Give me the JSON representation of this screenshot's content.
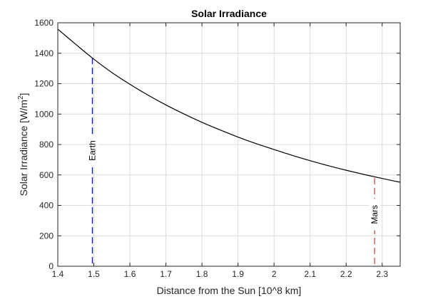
{
  "chart_data": {
    "type": "line",
    "title": "Solar Irradiance",
    "xlabel": "Distance from the Sun [10^8 km]",
    "ylabel_main": "Solar Irradiance [W/m",
    "ylabel_sup": "2",
    "ylabel_close": "]",
    "xlim": [
      1.4,
      2.35
    ],
    "ylim": [
      0,
      1600
    ],
    "xticks": [
      1.4,
      1.5,
      1.6,
      1.7,
      1.8,
      1.9,
      2.0,
      2.1,
      2.2,
      2.3
    ],
    "xtick_labels": [
      "1.4",
      "1.5",
      "1.6",
      "1.7",
      "1.8",
      "1.9",
      "2",
      "2.1",
      "2.2",
      "2.3"
    ],
    "yticks": [
      0,
      200,
      400,
      600,
      800,
      1000,
      1200,
      1400,
      1600
    ],
    "ytick_labels": [
      "0",
      "200",
      "400",
      "600",
      "800",
      "1000",
      "1200",
      "1400",
      "1600"
    ],
    "grid": true,
    "series": [
      {
        "color": "#000000",
        "x": [
          1.4,
          1.45,
          1.5,
          1.55,
          1.6,
          1.65,
          1.7,
          1.75,
          1.8,
          1.85,
          1.9,
          1.95,
          2.0,
          2.05,
          2.1,
          2.15,
          2.2,
          2.25,
          2.3,
          2.35
        ],
        "y": [
          1558,
          1458,
          1361,
          1273,
          1196,
          1125,
          1060,
          1001,
          946,
          896,
          849,
          806,
          767,
          729,
          694,
          661,
          631,
          603,
          577,
          552
        ]
      }
    ],
    "annotations": [
      {
        "label": "Earth",
        "x": 1.496,
        "y_top": 1370,
        "color": "#0000ff",
        "label_y": 760
      },
      {
        "label": "Mars",
        "x": 2.279,
        "y_top": 580,
        "color": "#c0504d",
        "label_y": 340
      }
    ]
  }
}
